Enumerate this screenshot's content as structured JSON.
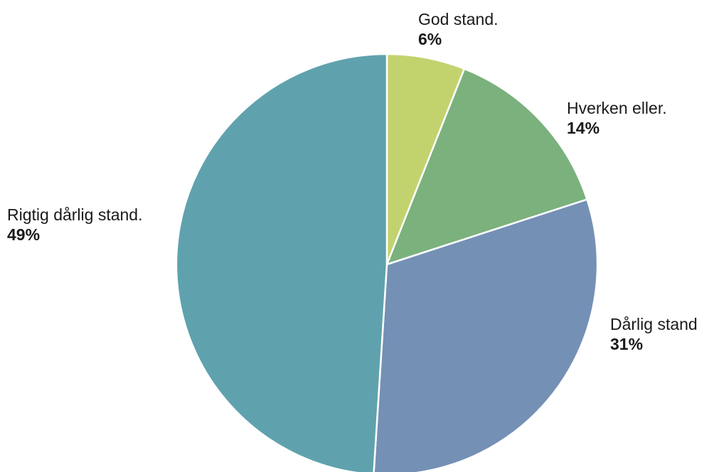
{
  "chart_data": {
    "type": "pie",
    "start": "top, clockwise",
    "slices": [
      {
        "label": "God stand.",
        "value": 6,
        "value_label": "6%",
        "color": "#c2d36e"
      },
      {
        "label": "Hverken eller.",
        "value": 14,
        "value_label": "14%",
        "color": "#7bb17d"
      },
      {
        "label": "Dårlig stand",
        "value": 31,
        "value_label": "31%",
        "color": "#7590b5"
      },
      {
        "label": "Rigtig dårlig stand.",
        "value": 49,
        "value_label": "49%",
        "color": "#5fa2ad"
      }
    ],
    "separator_color": "#ffffff"
  }
}
